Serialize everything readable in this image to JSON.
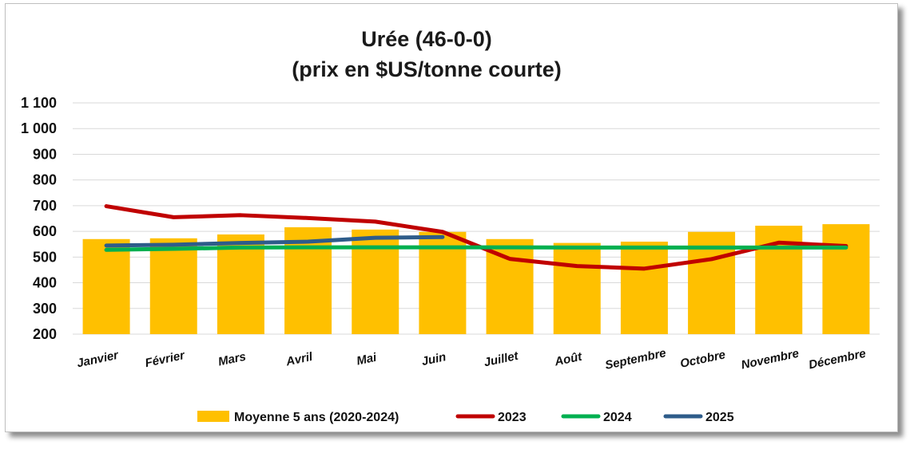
{
  "chart_data": {
    "type": "bar",
    "title": "Urée (46-0-0)",
    "subtitle": "(prix en $US/tonne courte)",
    "categories": [
      "Janvier",
      "Février",
      "Mars",
      "Avril",
      "Mai",
      "Juin",
      "Juillet",
      "Août",
      "Septembre",
      "Octobre",
      "Novembre",
      "Décembre"
    ],
    "ylim": [
      200,
      1100
    ],
    "yticks": [
      200,
      300,
      400,
      500,
      600,
      700,
      800,
      900,
      1000,
      1100
    ],
    "ytick_labels": [
      "200",
      "300",
      "400",
      "500",
      "600",
      "700",
      "800",
      "900",
      "1 000",
      "1 100"
    ],
    "grid": true,
    "legend_position": "bottom",
    "bars": {
      "name": "Moyenne 5 ans (2020-2024)",
      "color": "#FFC000",
      "values": [
        570,
        573,
        588,
        616,
        607,
        598,
        570,
        555,
        560,
        598,
        622,
        628
      ]
    },
    "series": [
      {
        "name": "2023",
        "color": "#C00000",
        "values": [
          698,
          655,
          663,
          652,
          638,
          598,
          493,
          465,
          455,
          492,
          556,
          543
        ]
      },
      {
        "name": "2024",
        "color": "#00B050",
        "values": [
          528,
          532,
          537,
          538,
          538,
          538,
          538,
          537,
          537,
          537,
          537,
          537
        ]
      },
      {
        "name": "2025",
        "color": "#2E5C8A",
        "values": [
          545,
          548,
          555,
          560,
          575,
          578,
          null,
          null,
          null,
          null,
          null,
          null
        ]
      }
    ]
  }
}
